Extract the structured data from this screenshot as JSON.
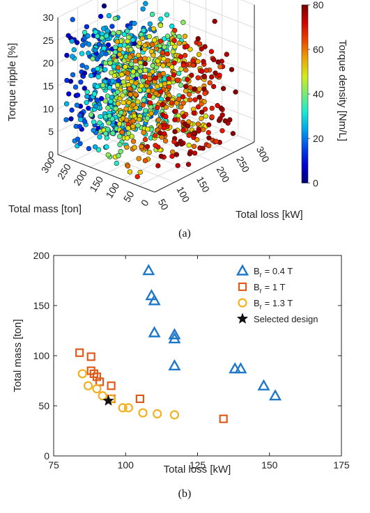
{
  "chart_data": [
    {
      "panel": "a",
      "type": "scatter",
      "projection": "3d",
      "caption": "(a)",
      "x_label": "Total loss [kW]",
      "y_label": "Total mass [ton]",
      "z_label": "Torque ripple [%]",
      "x_ticks": [
        "50",
        "100",
        "150",
        "200",
        "250",
        "300"
      ],
      "y_ticks": [
        "0",
        "50",
        "100",
        "150",
        "200",
        "250",
        "300"
      ],
      "z_ticks": [
        "0",
        "5",
        "10",
        "15",
        "20",
        "25",
        "30"
      ],
      "xlim": [
        50,
        300
      ],
      "ylim": [
        0,
        300
      ],
      "zlim": [
        0,
        30
      ],
      "grid": true,
      "colorbar": {
        "label": "Torque density [Nm/L]",
        "ticks": [
          "0",
          "20",
          "40",
          "60",
          "80"
        ],
        "range": [
          0,
          80
        ],
        "colormap": "jet"
      },
      "point_count": 1000,
      "note_on_points": "dense cloud; torque density highest at low mass, low loss (dark red), lowest at high mass (dark blue)",
      "points": []
    },
    {
      "panel": "b",
      "type": "scatter",
      "caption": "(b)",
      "xlabel": "Total loss [kW]",
      "ylabel": "Total mass [ton]",
      "xlim": [
        75,
        175
      ],
      "ylim": [
        0,
        200
      ],
      "x_ticks": [
        "75",
        "100",
        "125",
        "150",
        "175"
      ],
      "y_ticks": [
        "0",
        "50",
        "100",
        "150",
        "200"
      ],
      "grid": false,
      "legend_position": "top-right",
      "series": [
        {
          "name": "B_r = 0.4 T",
          "legend_main": "B",
          "legend_sub": "r",
          "legend_rest": " = 0.4 T",
          "marker": "triangle",
          "color": "#1f77c8",
          "points": [
            [
              108,
              185
            ],
            [
              109,
              160
            ],
            [
              110,
              155
            ],
            [
              110,
              123
            ],
            [
              117,
              121
            ],
            [
              117,
              117
            ],
            [
              117,
              90
            ],
            [
              138,
              87
            ],
            [
              140,
              87
            ],
            [
              148,
              70
            ],
            [
              152,
              60
            ]
          ]
        },
        {
          "name": "B_r = 1 T",
          "legend_main": "B",
          "legend_sub": "r",
          "legend_rest": " = 1 T",
          "marker": "square",
          "color": "#e05a1a",
          "points": [
            [
              84,
              103
            ],
            [
              88,
              99
            ],
            [
              88,
              85
            ],
            [
              89,
              82
            ],
            [
              90,
              79
            ],
            [
              91,
              74
            ],
            [
              95,
              70
            ],
            [
              95,
              57
            ],
            [
              105,
              57
            ],
            [
              134,
              37
            ]
          ]
        },
        {
          "name": "B_r = 1.3 T",
          "legend_main": "B",
          "legend_sub": "r",
          "legend_rest": " = 1.3 T",
          "marker": "circle",
          "color": "#f2b01e",
          "points": [
            [
              85,
              82
            ],
            [
              87,
              70
            ],
            [
              90,
              67
            ],
            [
              92,
              60
            ],
            [
              95,
              57
            ],
            [
              99,
              48
            ],
            [
              101,
              48
            ],
            [
              106,
              43
            ],
            [
              111,
              42
            ],
            [
              117,
              41
            ]
          ]
        },
        {
          "name": "Selected design",
          "legend_main": "Selected design",
          "legend_sub": "",
          "legend_rest": "",
          "marker": "star",
          "color": "#111111",
          "points": [
            [
              94,
              55
            ]
          ]
        }
      ]
    }
  ]
}
